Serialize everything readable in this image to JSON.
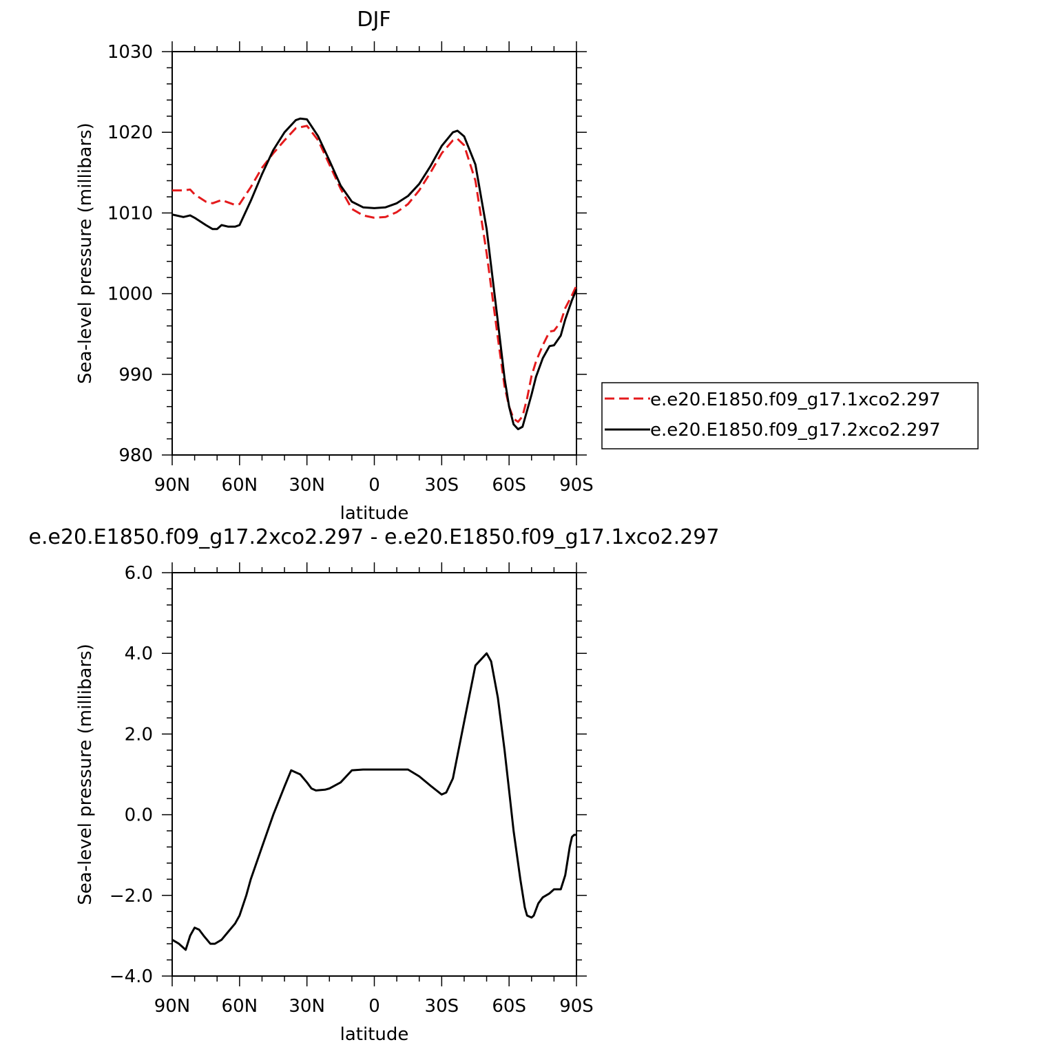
{
  "chart_data": [
    {
      "type": "line",
      "title": "DJF",
      "xlabel": "latitude",
      "ylabel": "Sea-level pressure (millibars)",
      "xlim": [
        90,
        -90
      ],
      "ylim": [
        980,
        1030
      ],
      "xticks": [
        90,
        60,
        30,
        0,
        -30,
        -60,
        -90
      ],
      "xtick_labels": [
        "90N",
        "60N",
        "30N",
        "0",
        "30S",
        "60S",
        "90S"
      ],
      "yticks": [
        980,
        990,
        1000,
        1010,
        1020,
        1030
      ],
      "ytick_labels": [
        "980",
        "990",
        "1000",
        "1010",
        "1020",
        "1030"
      ],
      "legend_position": "right",
      "series": [
        {
          "name": "e.e20.E1850.f09_g17.1xco2.297",
          "color": "#e41a1c",
          "dash": "dashed",
          "x": [
            90,
            85,
            82,
            80,
            75,
            72,
            68,
            65,
            62,
            60,
            55,
            50,
            45,
            40,
            35,
            30,
            25,
            20,
            15,
            10,
            5,
            0,
            -5,
            -10,
            -15,
            -20,
            -25,
            -30,
            -35,
            -37,
            -40,
            -45,
            -50,
            -55,
            -58,
            -60,
            -62,
            -64,
            -66,
            -68,
            -70,
            -72,
            -75,
            -78,
            -80,
            -83,
            -85,
            -88,
            -90
          ],
          "values": [
            1012.8,
            1012.8,
            1012.9,
            1012.3,
            1011.4,
            1011.2,
            1011.6,
            1011.3,
            1011.0,
            1011.1,
            1013.2,
            1015.6,
            1017.4,
            1019.0,
            1020.5,
            1020.8,
            1019.0,
            1016.0,
            1013.0,
            1010.5,
            1009.7,
            1009.4,
            1009.5,
            1010.1,
            1011.1,
            1012.8,
            1015.0,
            1017.4,
            1019.0,
            1019.2,
            1018.4,
            1014.0,
            1005.0,
            994.5,
            988.5,
            986.0,
            984.5,
            984.1,
            984.8,
            987.0,
            989.8,
            991.6,
            993.6,
            995.3,
            995.4,
            996.5,
            998.2,
            999.8,
            1001.0
          ]
        },
        {
          "name": "e.e20.E1850.f09_g17.2xco2.297",
          "color": "#000000",
          "dash": "solid",
          "x": [
            90,
            85,
            82,
            80,
            75,
            72,
            70,
            68,
            65,
            62,
            60,
            55,
            50,
            45,
            40,
            35,
            33,
            30,
            25,
            20,
            15,
            10,
            5,
            0,
            -5,
            -10,
            -15,
            -20,
            -25,
            -30,
            -35,
            -37,
            -40,
            -45,
            -50,
            -55,
            -58,
            -60,
            -62,
            -64,
            -66,
            -68,
            -70,
            -72,
            -75,
            -78,
            -80,
            -83,
            -85,
            -88,
            -90
          ],
          "values": [
            1009.8,
            1009.5,
            1009.7,
            1009.4,
            1008.5,
            1008.0,
            1008.0,
            1008.5,
            1008.3,
            1008.3,
            1008.5,
            1011.5,
            1014.8,
            1017.8,
            1020.0,
            1021.5,
            1021.7,
            1021.6,
            1019.5,
            1016.5,
            1013.4,
            1011.4,
            1010.7,
            1010.6,
            1010.7,
            1011.2,
            1012.1,
            1013.6,
            1015.8,
            1018.3,
            1020.0,
            1020.2,
            1019.5,
            1016.0,
            1008.0,
            996.5,
            989.5,
            986.0,
            983.8,
            983.2,
            983.5,
            985.5,
            987.5,
            989.7,
            992.0,
            993.5,
            993.6,
            994.8,
            996.8,
            999.2,
            1000.5
          ]
        }
      ]
    },
    {
      "type": "line",
      "title": "e.e20.E1850.f09_g17.2xco2.297 - e.e20.E1850.f09_g17.1xco2.297",
      "xlabel": "latitude",
      "ylabel": "Sea-level pressure (millibars)",
      "xlim": [
        90,
        -90
      ],
      "ylim": [
        -4.0,
        6.0
      ],
      "xticks": [
        90,
        60,
        30,
        0,
        -30,
        -60,
        -90
      ],
      "xtick_labels": [
        "90N",
        "60N",
        "30N",
        "0",
        "30S",
        "60S",
        "90S"
      ],
      "yticks": [
        -4.0,
        -2.0,
        0.0,
        2.0,
        4.0,
        6.0
      ],
      "ytick_labels": [
        "−4.0",
        "−2.0",
        "0.0",
        "2.0",
        "4.0",
        "6.0"
      ],
      "series": [
        {
          "color": "#000000",
          "dash": "solid",
          "x": [
            90,
            87,
            84,
            82,
            80,
            78,
            76,
            73,
            71,
            68,
            65,
            62,
            60,
            57,
            55,
            50,
            45,
            40,
            37,
            35,
            33,
            30,
            28,
            26,
            22,
            20,
            15,
            10,
            5,
            0,
            -5,
            -10,
            -15,
            -20,
            -25,
            -30,
            -32,
            -35,
            -40,
            -45,
            -50,
            -52,
            -55,
            -58,
            -60,
            -62,
            -65,
            -67,
            -68,
            -70,
            -71,
            -73,
            -75,
            -78,
            -80,
            -83,
            -85,
            -87,
            -88,
            -89,
            -90
          ],
          "values": [
            -3.1,
            -3.2,
            -3.35,
            -3.0,
            -2.8,
            -2.85,
            -3.0,
            -3.2,
            -3.2,
            -3.1,
            -2.9,
            -2.7,
            -2.5,
            -2.0,
            -1.6,
            -0.8,
            0.0,
            0.7,
            1.1,
            1.05,
            1.0,
            0.8,
            0.65,
            0.6,
            0.62,
            0.65,
            0.8,
            1.1,
            1.12,
            1.12,
            1.12,
            1.12,
            1.12,
            0.95,
            0.72,
            0.5,
            0.55,
            0.9,
            2.3,
            3.7,
            4.0,
            3.8,
            2.9,
            1.6,
            0.6,
            -0.4,
            -1.6,
            -2.3,
            -2.5,
            -2.55,
            -2.5,
            -2.2,
            -2.05,
            -1.95,
            -1.85,
            -1.85,
            -1.5,
            -0.8,
            -0.55,
            -0.5,
            -0.5
          ]
        }
      ]
    }
  ]
}
